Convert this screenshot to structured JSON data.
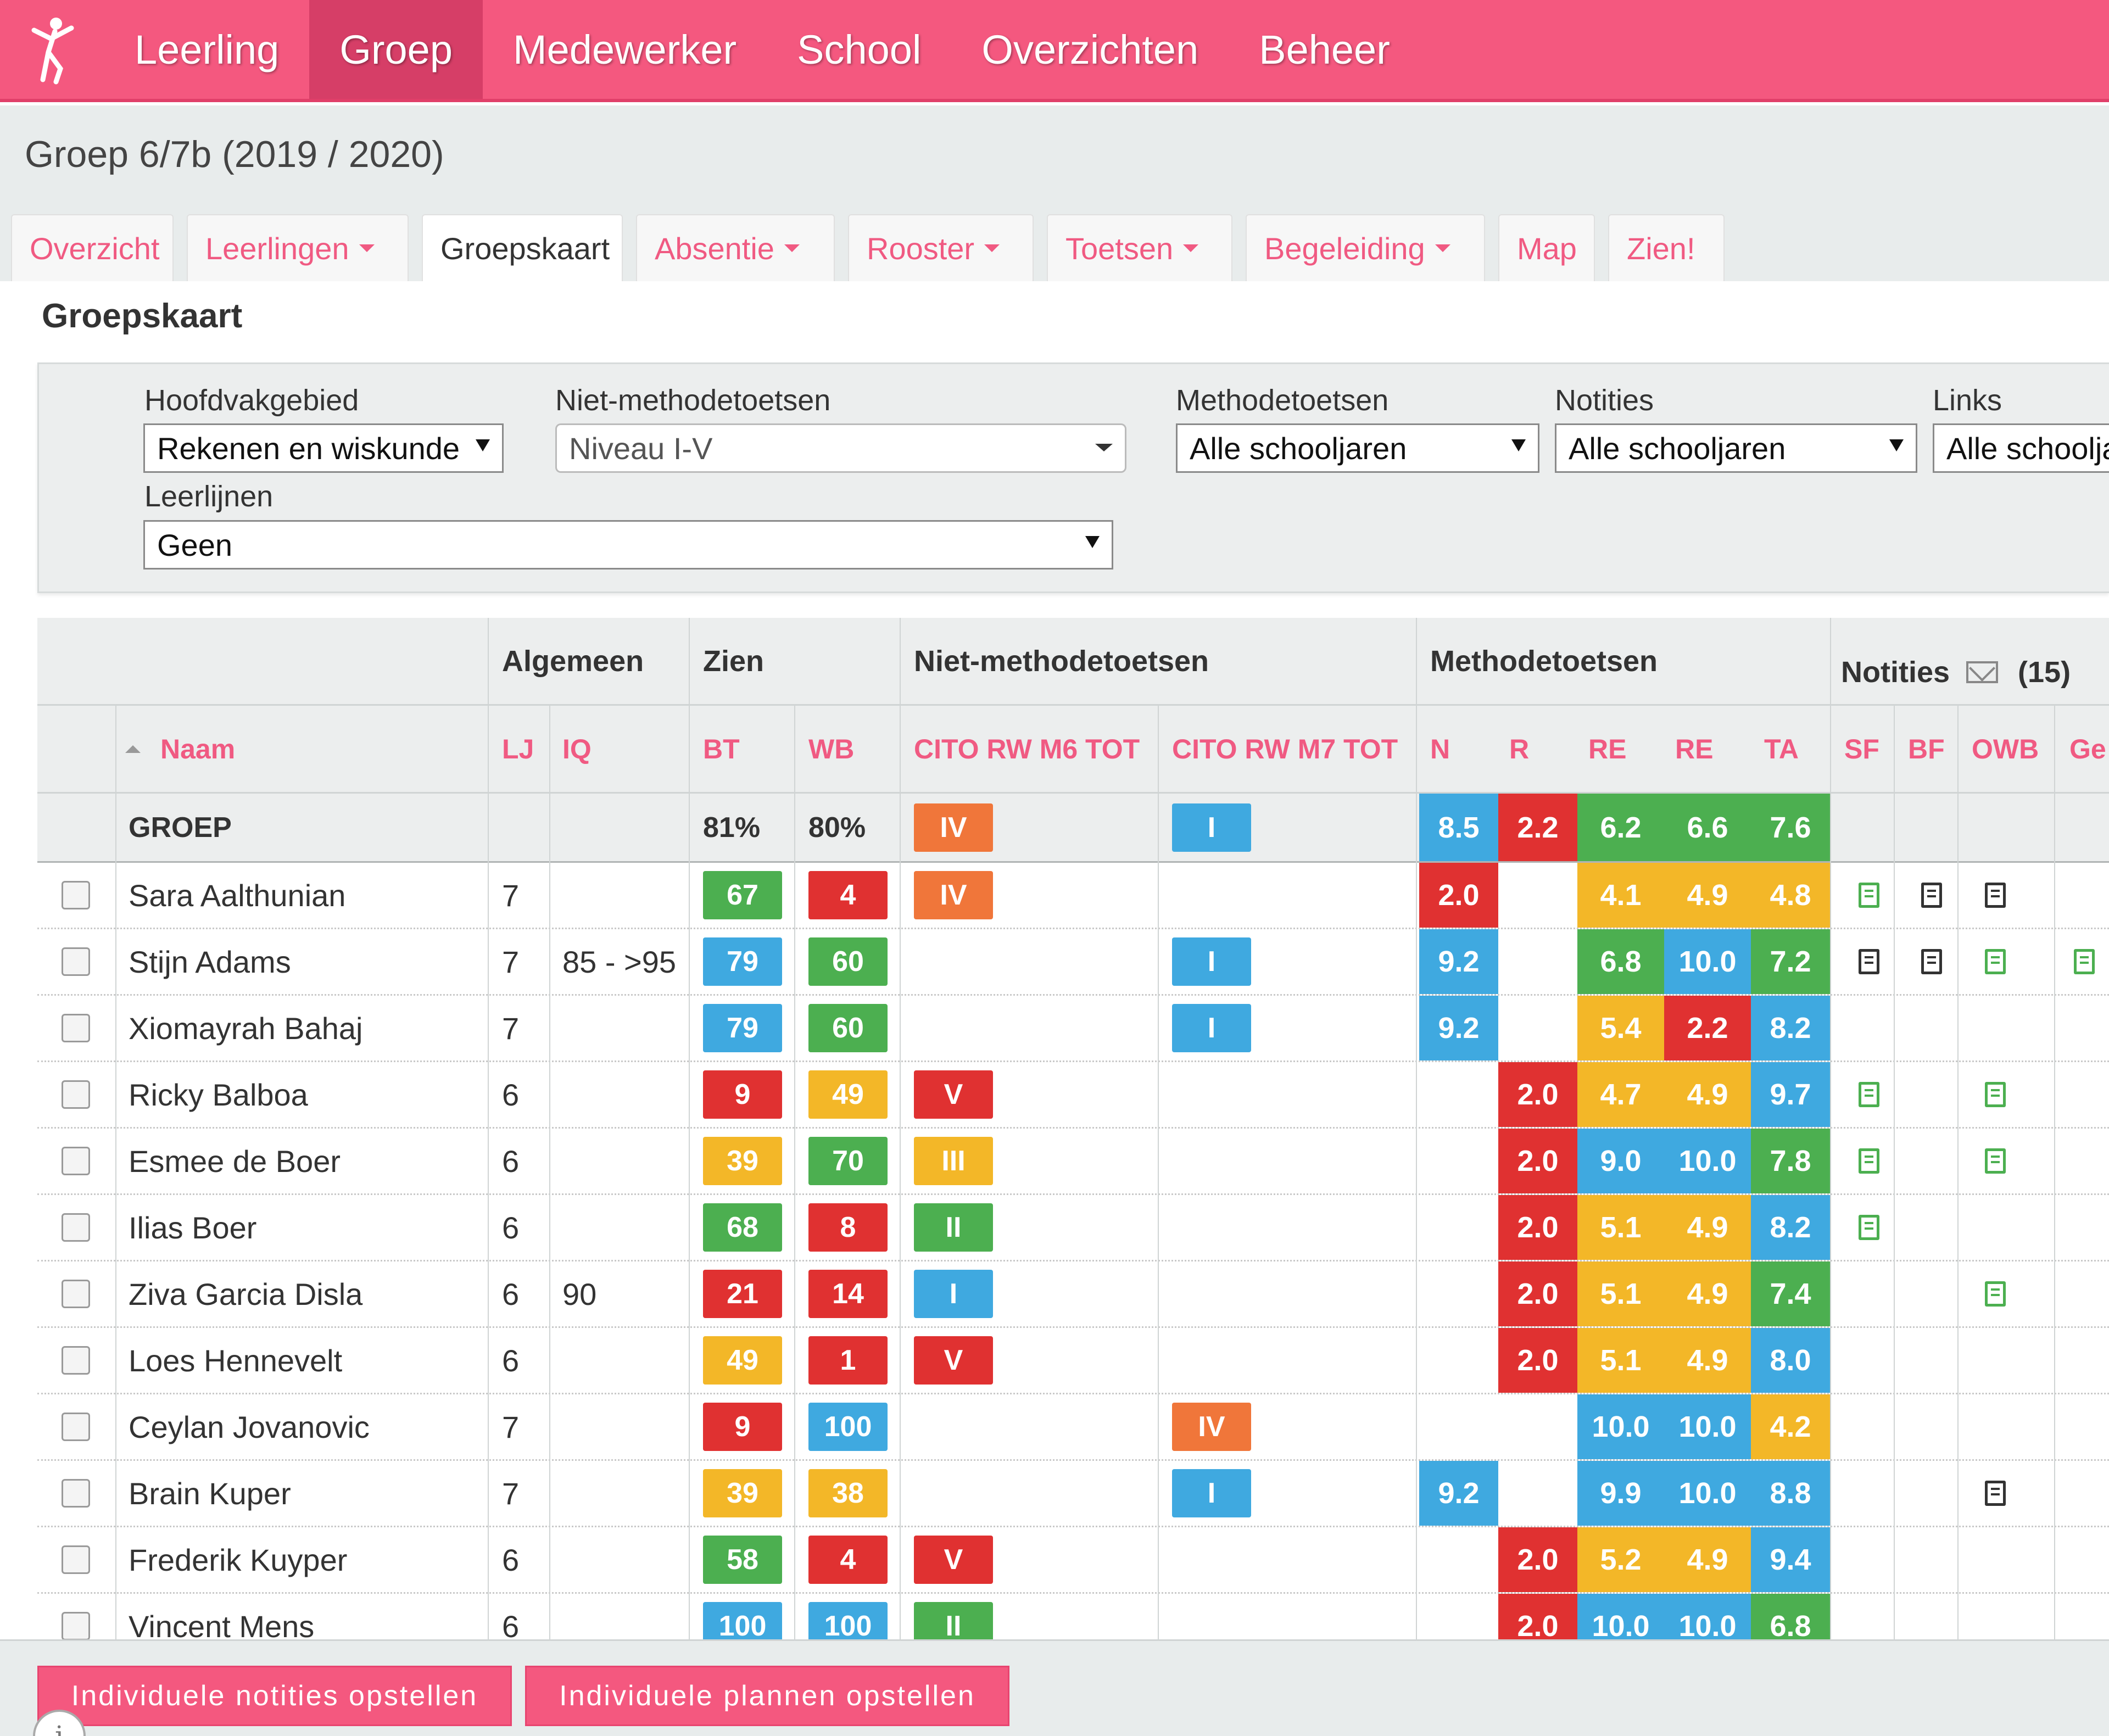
{
  "nav": {
    "items": [
      "Leerling",
      "Groep",
      "Medewerker",
      "School",
      "Overzichten",
      "Beheer"
    ],
    "active": "Groep"
  },
  "page": {
    "title": "Groep 6/7b (2019 / 2020)"
  },
  "tabs": [
    {
      "label": "Overzicht",
      "dropdown": false
    },
    {
      "label": "Leerlingen",
      "dropdown": true
    },
    {
      "label": "Groepskaart",
      "dropdown": false,
      "active": true
    },
    {
      "label": "Absentie",
      "dropdown": true
    },
    {
      "label": "Rooster",
      "dropdown": true
    },
    {
      "label": "Toetsen",
      "dropdown": true
    },
    {
      "label": "Begeleiding",
      "dropdown": true
    },
    {
      "label": "Map",
      "dropdown": false
    },
    {
      "label": "Zien!",
      "dropdown": false
    }
  ],
  "section_title": "Groepskaart",
  "filters": {
    "hoofdvakgebied": {
      "label": "Hoofdvakgebied",
      "value": "Rekenen en wiskunde"
    },
    "niet_methode": {
      "label": "Niet-methodetoetsen",
      "value": "Niveau I-V"
    },
    "methode": {
      "label": "Methodetoetsen",
      "value": "Alle schooljaren"
    },
    "notities": {
      "label": "Notities",
      "value": "Alle schooljaren"
    },
    "links": {
      "label": "Links",
      "value": "Alle schoolja"
    },
    "leerlijnen": {
      "label": "Leerlijnen",
      "value": "Geen"
    }
  },
  "table": {
    "groups": {
      "algemeen": "Algemeen",
      "zien": "Zien",
      "niet_methode": "Niet-methodetoetsen",
      "methode": "Methodetoetsen",
      "notities": "Notities",
      "notities_count": "(15)"
    },
    "columns": {
      "naam": "Naam",
      "lj": "LJ",
      "iq": "IQ",
      "bt": "BT",
      "wb": "WB",
      "cito_m6": "CITO RW M6 TOT",
      "cito_m7": "CITO RW M7 TOT",
      "n": "N",
      "r": "R",
      "re1": "RE",
      "re2": "RE",
      "ta": "TA",
      "sf": "SF",
      "bf": "BF",
      "owb": "OWB",
      "ge": "Ge"
    },
    "groep": {
      "label": "GROEP",
      "bt": "81%",
      "wb": "80%",
      "m6": {
        "v": "IV",
        "c": "o"
      },
      "m7": {
        "v": "I",
        "c": "b"
      },
      "n": {
        "v": "8.5",
        "c": "b"
      },
      "r": {
        "v": "2.2",
        "c": "r"
      },
      "re1": {
        "v": "6.2",
        "c": "g"
      },
      "re2": {
        "v": "6.6",
        "c": "g"
      },
      "ta": {
        "v": "7.6",
        "c": "g"
      }
    },
    "students": [
      {
        "name": "Sara Aalthunian",
        "lj": "7",
        "iq": "",
        "bt": {
          "v": "67",
          "c": "g"
        },
        "wb": {
          "v": "4",
          "c": "r"
        },
        "m6": {
          "v": "IV",
          "c": "o"
        },
        "m7": null,
        "n": {
          "v": "2.0",
          "c": "r"
        },
        "r": null,
        "re1": {
          "v": "4.1",
          "c": "y"
        },
        "re2": {
          "v": "4.9",
          "c": "y"
        },
        "ta": {
          "v": "4.8",
          "c": "y"
        },
        "notes": {
          "sf": "g",
          "bf": "d",
          "owb": "d",
          "ge": ""
        }
      },
      {
        "name": "Stijn Adams",
        "lj": "7",
        "iq": "85 - >95",
        "bt": {
          "v": "79",
          "c": "b"
        },
        "wb": {
          "v": "60",
          "c": "g"
        },
        "m6": null,
        "m7": {
          "v": "I",
          "c": "b"
        },
        "n": {
          "v": "9.2",
          "c": "b"
        },
        "r": null,
        "re1": {
          "v": "6.8",
          "c": "g"
        },
        "re2": {
          "v": "10.0",
          "c": "b"
        },
        "ta": {
          "v": "7.2",
          "c": "g"
        },
        "notes": {
          "sf": "d",
          "bf": "d",
          "owb": "g",
          "ge": "g"
        }
      },
      {
        "name": "Xiomayrah Bahaj",
        "lj": "7",
        "iq": "",
        "bt": {
          "v": "79",
          "c": "b"
        },
        "wb": {
          "v": "60",
          "c": "g"
        },
        "m6": null,
        "m7": {
          "v": "I",
          "c": "b"
        },
        "n": {
          "v": "9.2",
          "c": "b"
        },
        "r": null,
        "re1": {
          "v": "5.4",
          "c": "y"
        },
        "re2": {
          "v": "2.2",
          "c": "r"
        },
        "ta": {
          "v": "8.2",
          "c": "b"
        },
        "notes": {
          "sf": "",
          "bf": "",
          "owb": "",
          "ge": ""
        }
      },
      {
        "name": "Ricky Balboa",
        "lj": "6",
        "iq": "",
        "bt": {
          "v": "9",
          "c": "r"
        },
        "wb": {
          "v": "49",
          "c": "y"
        },
        "m6": {
          "v": "V",
          "c": "r"
        },
        "m7": null,
        "n": null,
        "r": {
          "v": "2.0",
          "c": "r"
        },
        "re1": {
          "v": "4.7",
          "c": "y"
        },
        "re2": {
          "v": "4.9",
          "c": "y"
        },
        "ta": {
          "v": "9.7",
          "c": "b"
        },
        "notes": {
          "sf": "g",
          "bf": "",
          "owb": "g",
          "ge": ""
        }
      },
      {
        "name": "Esmee de Boer",
        "lj": "6",
        "iq": "",
        "bt": {
          "v": "39",
          "c": "y"
        },
        "wb": {
          "v": "70",
          "c": "g"
        },
        "m6": {
          "v": "III",
          "c": "y"
        },
        "m7": null,
        "n": null,
        "r": {
          "v": "2.0",
          "c": "r"
        },
        "re1": {
          "v": "9.0",
          "c": "b"
        },
        "re2": {
          "v": "10.0",
          "c": "b"
        },
        "ta": {
          "v": "7.8",
          "c": "g"
        },
        "notes": {
          "sf": "g",
          "bf": "",
          "owb": "g",
          "ge": ""
        }
      },
      {
        "name": "Ilias Boer",
        "lj": "6",
        "iq": "",
        "bt": {
          "v": "68",
          "c": "g"
        },
        "wb": {
          "v": "8",
          "c": "r"
        },
        "m6": {
          "v": "II",
          "c": "g"
        },
        "m7": null,
        "n": null,
        "r": {
          "v": "2.0",
          "c": "r"
        },
        "re1": {
          "v": "5.1",
          "c": "y"
        },
        "re2": {
          "v": "4.9",
          "c": "y"
        },
        "ta": {
          "v": "8.2",
          "c": "b"
        },
        "notes": {
          "sf": "g",
          "bf": "",
          "owb": "",
          "ge": ""
        }
      },
      {
        "name": "Ziva Garcia Disla",
        "lj": "6",
        "iq": "90",
        "bt": {
          "v": "21",
          "c": "r"
        },
        "wb": {
          "v": "14",
          "c": "r"
        },
        "m6": {
          "v": "I",
          "c": "b"
        },
        "m7": null,
        "n": null,
        "r": {
          "v": "2.0",
          "c": "r"
        },
        "re1": {
          "v": "5.1",
          "c": "y"
        },
        "re2": {
          "v": "4.9",
          "c": "y"
        },
        "ta": {
          "v": "7.4",
          "c": "g"
        },
        "notes": {
          "sf": "",
          "bf": "",
          "owb": "g",
          "ge": ""
        }
      },
      {
        "name": "Loes Hennevelt",
        "lj": "6",
        "iq": "",
        "bt": {
          "v": "49",
          "c": "y"
        },
        "wb": {
          "v": "1",
          "c": "r"
        },
        "m6": {
          "v": "V",
          "c": "r"
        },
        "m7": null,
        "n": null,
        "r": {
          "v": "2.0",
          "c": "r"
        },
        "re1": {
          "v": "5.1",
          "c": "y"
        },
        "re2": {
          "v": "4.9",
          "c": "y"
        },
        "ta": {
          "v": "8.0",
          "c": "b"
        },
        "notes": {
          "sf": "",
          "bf": "",
          "owb": "",
          "ge": ""
        }
      },
      {
        "name": "Ceylan Jovanovic",
        "lj": "7",
        "iq": "",
        "bt": {
          "v": "9",
          "c": "r"
        },
        "wb": {
          "v": "100",
          "c": "b"
        },
        "m6": null,
        "m7": {
          "v": "IV",
          "c": "o"
        },
        "n": null,
        "r": null,
        "re1": {
          "v": "10.0",
          "c": "b"
        },
        "re2": {
          "v": "10.0",
          "c": "b"
        },
        "ta": {
          "v": "4.2",
          "c": "y"
        },
        "notes": {
          "sf": "",
          "bf": "",
          "owb": "",
          "ge": ""
        }
      },
      {
        "name": "Brain Kuper",
        "lj": "7",
        "iq": "",
        "bt": {
          "v": "39",
          "c": "y"
        },
        "wb": {
          "v": "38",
          "c": "y"
        },
        "m6": null,
        "m7": {
          "v": "I",
          "c": "b"
        },
        "n": {
          "v": "9.2",
          "c": "b"
        },
        "r": null,
        "re1": {
          "v": "9.9",
          "c": "b"
        },
        "re2": {
          "v": "10.0",
          "c": "b"
        },
        "ta": {
          "v": "8.8",
          "c": "b"
        },
        "notes": {
          "sf": "",
          "bf": "",
          "owb": "d",
          "ge": ""
        }
      },
      {
        "name": "Frederik Kuyper",
        "lj": "6",
        "iq": "",
        "bt": {
          "v": "58",
          "c": "g"
        },
        "wb": {
          "v": "4",
          "c": "r"
        },
        "m6": {
          "v": "V",
          "c": "r"
        },
        "m7": null,
        "n": null,
        "r": {
          "v": "2.0",
          "c": "r"
        },
        "re1": {
          "v": "5.2",
          "c": "y"
        },
        "re2": {
          "v": "4.9",
          "c": "y"
        },
        "ta": {
          "v": "9.4",
          "c": "b"
        },
        "notes": {
          "sf": "",
          "bf": "",
          "owb": "",
          "ge": ""
        }
      },
      {
        "name": "Vincent Mens",
        "lj": "6",
        "iq": "",
        "bt": {
          "v": "100",
          "c": "b"
        },
        "wb": {
          "v": "100",
          "c": "b"
        },
        "m6": {
          "v": "II",
          "c": "g"
        },
        "m7": null,
        "n": null,
        "r": {
          "v": "2.0",
          "c": "r"
        },
        "re1": {
          "v": "10.0",
          "c": "b"
        },
        "re2": {
          "v": "10.0",
          "c": "b"
        },
        "ta": {
          "v": "6.8",
          "c": "g"
        },
        "notes": {
          "sf": "",
          "bf": "",
          "owb": "",
          "ge": ""
        }
      }
    ]
  },
  "footer": {
    "btn_notities": "Individuele notities opstellen",
    "btn_plannen": "Individuele plannen opstellen",
    "info_glyph": "i"
  },
  "colors": {
    "brand_pink": "#f4587f",
    "green": "#4caf50",
    "red": "#e03131",
    "yellow": "#f3b728",
    "blue": "#3fa9e0",
    "orange": "#f0763a"
  }
}
